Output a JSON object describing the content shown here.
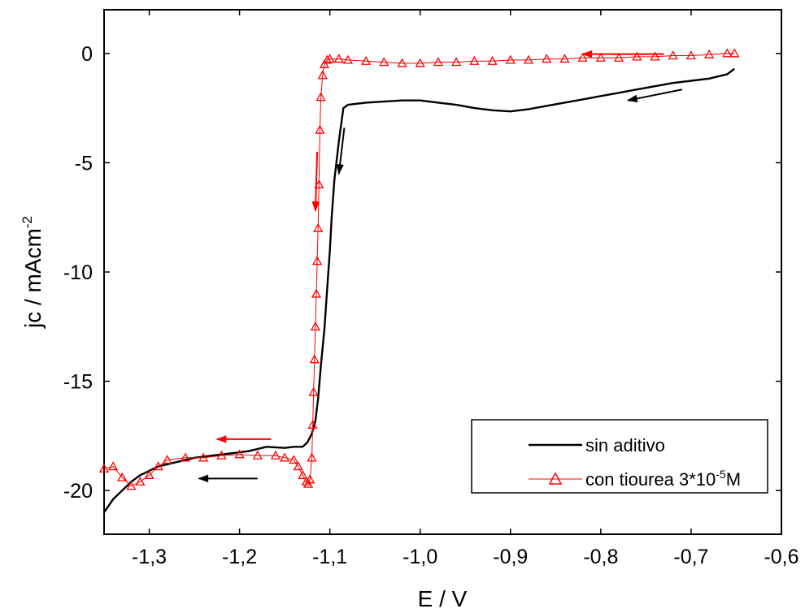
{
  "chart_data": {
    "type": "line",
    "xlabel": "E / V",
    "ylabel": "jc / mAcm",
    "ylabel_superscript": "-2",
    "xlim": [
      -1.35,
      -0.6
    ],
    "ylim": [
      -22,
      2
    ],
    "x_ticks": [
      {
        "value": -1.3,
        "label": "-1,3"
      },
      {
        "value": -1.2,
        "label": "-1,2"
      },
      {
        "value": -1.1,
        "label": "-1,1"
      },
      {
        "value": -1.0,
        "label": "-1,0"
      },
      {
        "value": -0.9,
        "label": "-0,9"
      },
      {
        "value": -0.8,
        "label": "-0,8"
      },
      {
        "value": -0.7,
        "label": "-0,7"
      },
      {
        "value": -0.6,
        "label": "-0,6"
      }
    ],
    "y_ticks": [
      {
        "value": 0,
        "label": "0"
      },
      {
        "value": -5,
        "label": "-5"
      },
      {
        "value": -10,
        "label": "-10"
      },
      {
        "value": -15,
        "label": "-15"
      },
      {
        "value": -20,
        "label": "-20"
      }
    ],
    "grid": false,
    "legend_position": "bottom-right",
    "series": [
      {
        "name": "sin aditivo",
        "color": "#000000",
        "marker": "none",
        "x": [
          -0.652,
          -0.66,
          -0.67,
          -0.68,
          -0.7,
          -0.72,
          -0.74,
          -0.76,
          -0.78,
          -0.8,
          -0.82,
          -0.84,
          -0.86,
          -0.88,
          -0.9,
          -0.92,
          -0.94,
          -0.96,
          -0.98,
          -1.0,
          -1.02,
          -1.04,
          -1.06,
          -1.08,
          -1.085,
          -1.09,
          -1.095,
          -1.098,
          -1.1,
          -1.103,
          -1.106,
          -1.11,
          -1.113,
          -1.116,
          -1.12,
          -1.125,
          -1.13,
          -1.14,
          -1.15,
          -1.17,
          -1.19,
          -1.21,
          -1.23,
          -1.25,
          -1.27,
          -1.29,
          -1.3,
          -1.31,
          -1.32,
          -1.33,
          -1.34,
          -1.35
        ],
        "y": [
          -0.7,
          -0.95,
          -1.05,
          -1.15,
          -1.25,
          -1.35,
          -1.5,
          -1.65,
          -1.8,
          -1.95,
          -2.1,
          -2.25,
          -2.4,
          -2.55,
          -2.65,
          -2.6,
          -2.5,
          -2.35,
          -2.25,
          -2.15,
          -2.15,
          -2.2,
          -2.25,
          -2.35,
          -2.5,
          -4.0,
          -5.8,
          -7.5,
          -9.0,
          -10.8,
          -12.6,
          -14.3,
          -15.8,
          -16.8,
          -17.4,
          -17.8,
          -18.0,
          -18.0,
          -18.05,
          -18.0,
          -18.2,
          -18.3,
          -18.4,
          -18.5,
          -18.7,
          -18.9,
          -19.1,
          -19.3,
          -19.6,
          -20.0,
          -20.4,
          -21.0
        ]
      },
      {
        "name": "con tiourea 3*10",
        "name_superscript": "-5",
        "name_suffix": "M",
        "color": "#ff0000",
        "marker": "triangle-open",
        "x": [
          -0.652,
          -0.66,
          -0.68,
          -0.7,
          -0.72,
          -0.74,
          -0.76,
          -0.78,
          -0.8,
          -0.82,
          -0.84,
          -0.86,
          -0.88,
          -0.9,
          -0.92,
          -0.94,
          -0.96,
          -0.98,
          -1.0,
          -1.02,
          -1.04,
          -1.06,
          -1.08,
          -1.09,
          -1.1,
          -1.103,
          -1.106,
          -1.108,
          -1.11,
          -1.111,
          -1.112,
          -1.113,
          -1.114,
          -1.115,
          -1.116,
          -1.117,
          -1.118,
          -1.119,
          -1.12,
          -1.122,
          -1.124,
          -1.126,
          -1.13,
          -1.135,
          -1.14,
          -1.15,
          -1.16,
          -1.18,
          -1.2,
          -1.22,
          -1.24,
          -1.26,
          -1.28,
          -1.29,
          -1.3,
          -1.31,
          -1.32,
          -1.33,
          -1.34,
          -1.35
        ],
        "y": [
          0.0,
          0.0,
          -0.05,
          -0.1,
          -0.1,
          -0.15,
          -0.15,
          -0.2,
          -0.2,
          -0.2,
          -0.25,
          -0.25,
          -0.3,
          -0.3,
          -0.35,
          -0.35,
          -0.4,
          -0.4,
          -0.45,
          -0.45,
          -0.4,
          -0.35,
          -0.3,
          -0.25,
          -0.25,
          -0.3,
          -0.5,
          -1.0,
          -2.0,
          -3.5,
          -6.0,
          -8.0,
          -9.5,
          -11.0,
          -12.5,
          -14.0,
          -15.5,
          -17.0,
          -18.5,
          -19.5,
          -19.7,
          -19.6,
          -19.3,
          -18.9,
          -18.6,
          -18.5,
          -18.4,
          -18.4,
          -18.35,
          -18.4,
          -18.5,
          -18.5,
          -18.6,
          -18.9,
          -19.3,
          -19.6,
          -19.8,
          -19.4,
          -18.9,
          -19.0
        ]
      }
    ],
    "annotations": [
      {
        "type": "arrow",
        "color": "#ff0000",
        "from": [
          -0.73,
          -0.03
        ],
        "to": [
          -0.82,
          -0.03
        ]
      },
      {
        "type": "arrow",
        "color": "#000000",
        "from": [
          -0.71,
          -1.65
        ],
        "to": [
          -0.77,
          -2.15
        ]
      },
      {
        "type": "arrow",
        "color": "#000000",
        "from": [
          -1.084,
          -3.4
        ],
        "to": [
          -1.09,
          -5.5
        ]
      },
      {
        "type": "arrow",
        "color": "#ff0000",
        "from": [
          -1.114,
          -4.5
        ],
        "to": [
          -1.116,
          -7.2
        ]
      },
      {
        "type": "arrow",
        "color": "#ff0000",
        "from": [
          -1.165,
          -17.65
        ],
        "to": [
          -1.225,
          -17.65
        ]
      },
      {
        "type": "arrow",
        "color": "#000000",
        "from": [
          -1.18,
          -19.45
        ],
        "to": [
          -1.245,
          -19.45
        ]
      }
    ]
  }
}
